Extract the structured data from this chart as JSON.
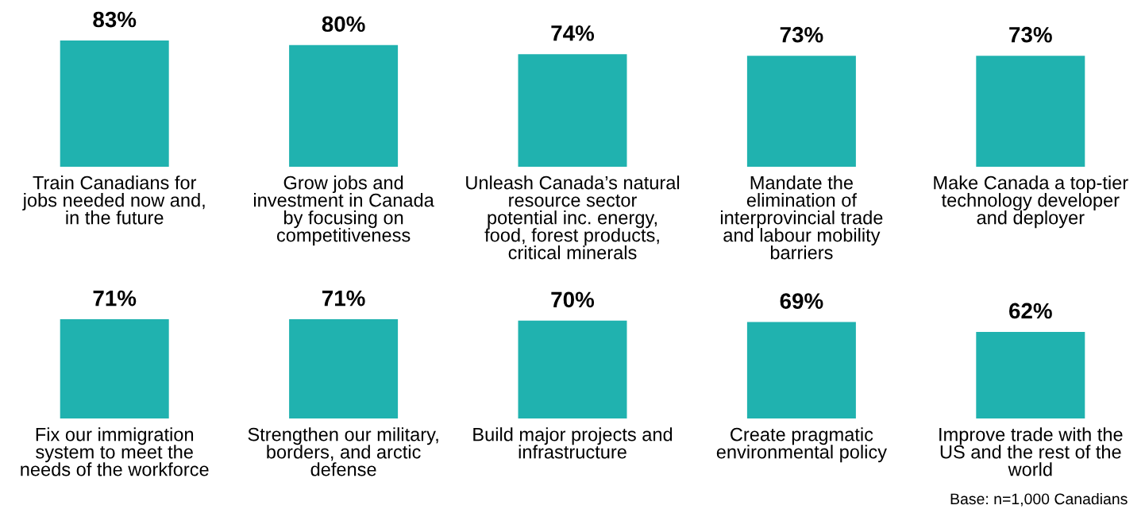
{
  "chart_data": [
    {
      "type": "bar",
      "categories": [
        "Train Canadians for\njobs needed now and,\nin the future",
        "Grow jobs and\ninvestment in Canada\nby focusing on\ncompetitiveness",
        "Unleash Canada’s natural\nresource sector\npotential inc. energy,\nfood, forest products,\ncritical minerals",
        "Mandate the\nelimination of\ninterprovincial trade\nand labour mobility\nbarriers",
        "Make Canada a top-tier\ntechnology developer\nand deployer"
      ],
      "values": [
        83,
        80,
        74,
        73,
        73
      ],
      "color": "#20b2af",
      "tick_labels": "x",
      "data_labels": true,
      "value_labels": [
        "83%",
        "80%",
        "74%",
        "73%",
        "73%"
      ]
    },
    {
      "type": "bar",
      "categories": [
        "Fix our immigration\nsystem to meet the\nneeds of the workforce",
        "Strengthen our military,\nborders, and arctic\ndefense",
        "Build major projects and\ninfrastructure",
        "Create pragmatic\nenvironmental policy",
        "Improve trade with the\nUS and the rest of the\nworld"
      ],
      "values": [
        71,
        71,
        70,
        69,
        62
      ],
      "color": "#20b2af",
      "tick_labels": "x",
      "data_labels": true,
      "value_labels": [
        "71%",
        "71%",
        "70%",
        "69%",
        "62%"
      ],
      "annotations": [
        "Base: n=1,000 Canadians"
      ]
    }
  ]
}
